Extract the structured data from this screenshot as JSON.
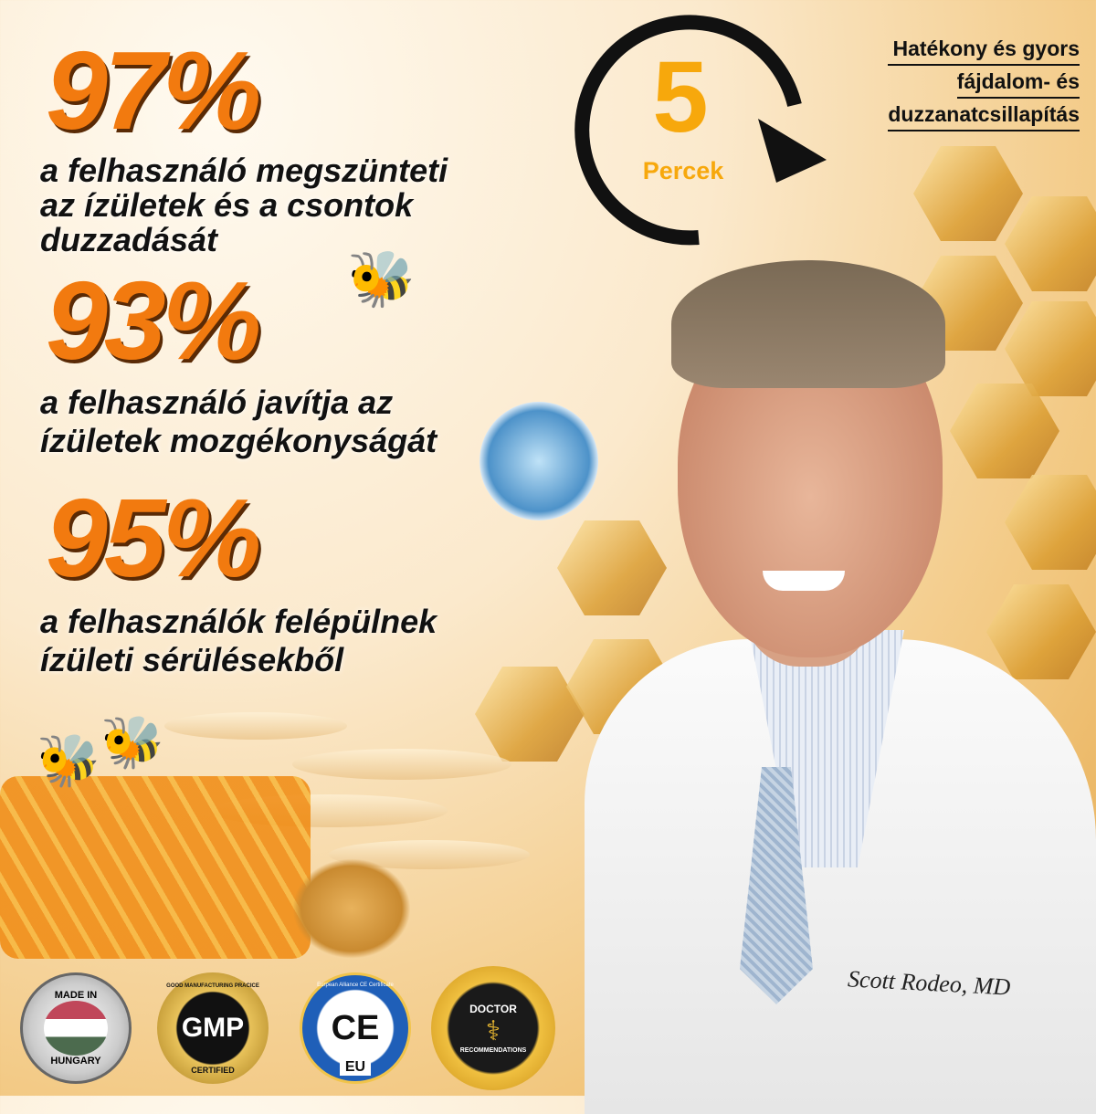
{
  "stats": [
    {
      "value": "97%",
      "caption": [
        "a felhasználó megszünteti",
        "az ízületek és a csontok",
        "duzzadását"
      ]
    },
    {
      "value": "93%",
      "caption": [
        "a felhasználó javítja az",
        "ízületek mozgékonyságát"
      ]
    },
    {
      "value": "95%",
      "caption": [
        "a felhasználók felépülnek",
        "ízületi sérülésekből"
      ]
    }
  ],
  "timer": {
    "number": "5",
    "unit": "Percek"
  },
  "headline": [
    "Hatékony és gyors",
    "fájdalom- és",
    "duzzanatcsillapítás"
  ],
  "signature": "Scott Rodeo, MD",
  "badges": [
    {
      "top": "MADE IN",
      "bottom": "HUNGARY"
    },
    {
      "top": "GOOD MANUFACTURING PRACICE",
      "center": "GMP",
      "bottom": "CERTIFIED"
    },
    {
      "top": "Eurpean Alliance CE Certificate",
      "center": "CE",
      "bottom": "EU"
    },
    {
      "top": "DOCTOR",
      "bottom": "RECOMMENDATIONS"
    }
  ],
  "colors": {
    "accent": "#f27a0f",
    "timer": "#f7a80c"
  }
}
